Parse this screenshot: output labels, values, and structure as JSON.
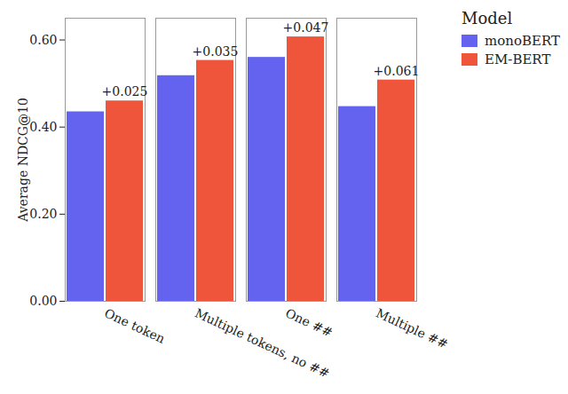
{
  "chart_data": {
    "type": "bar",
    "y_label": "Average NDCG@10",
    "legend_title": "Model",
    "categories": [
      "One token",
      "Multiple tokens, no ##",
      "One ##",
      "Multiple ##"
    ],
    "series": [
      {
        "name": "monoBERT",
        "color": "#6363f0",
        "values": [
          0.435,
          0.518,
          0.56,
          0.447
        ]
      },
      {
        "name": "EM-BERT",
        "color": "#ef553b",
        "values": [
          0.46,
          0.553,
          0.607,
          0.508
        ],
        "annotations": [
          "+0.025",
          "+0.035",
          "+0.047",
          "+0.061"
        ]
      }
    ],
    "ylim": [
      0,
      0.65
    ],
    "yticks": [
      0,
      0.2,
      0.4,
      0.6
    ],
    "grid": false,
    "legend": "top-right"
  }
}
